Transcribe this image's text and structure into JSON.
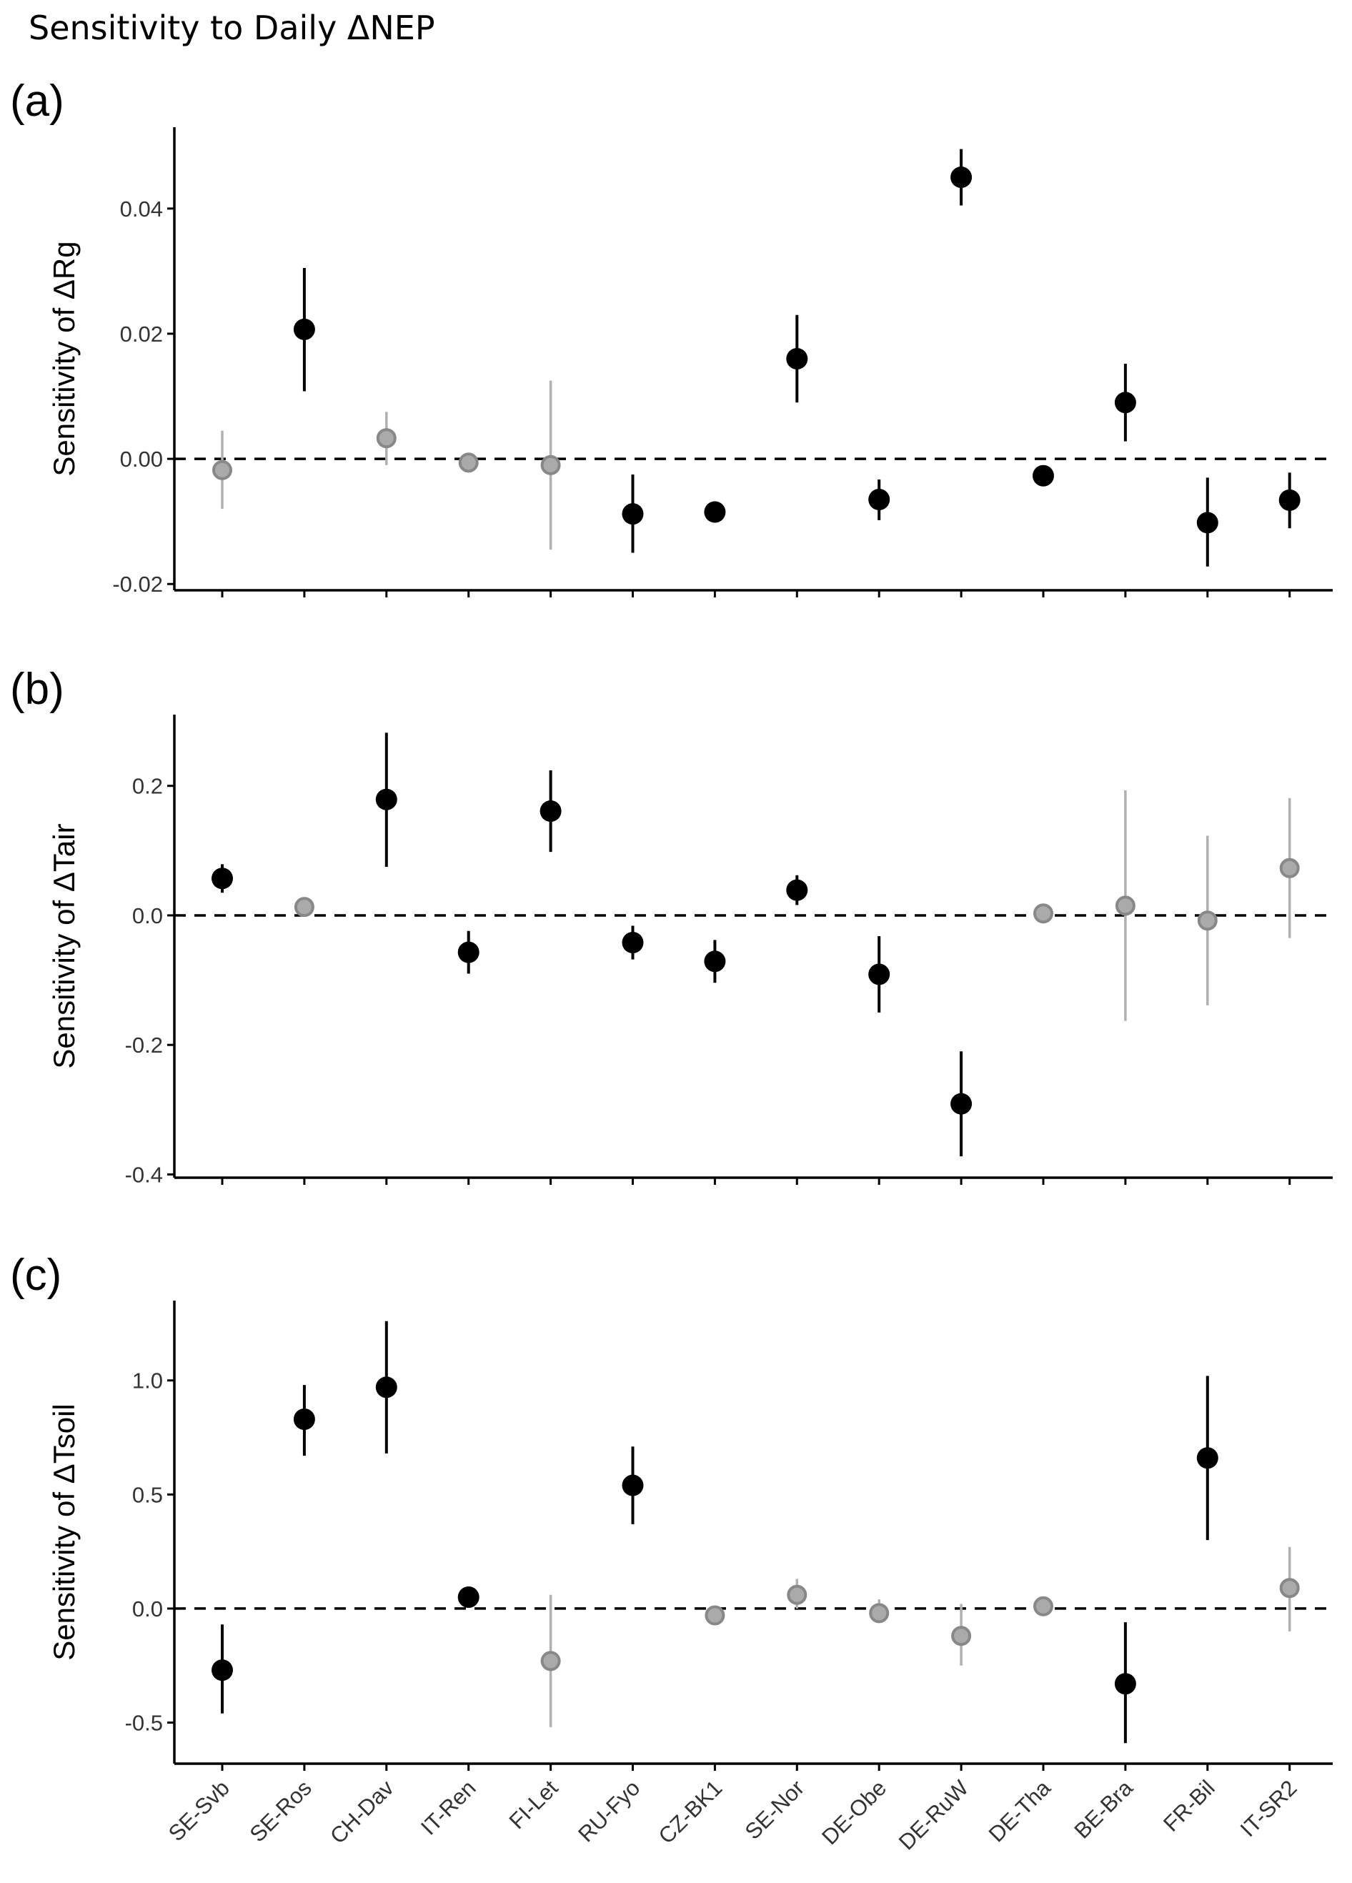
{
  "figure": {
    "title": "Sensitivity to Daily ΔNEP",
    "colors": {
      "significant": "#000000",
      "nonsignificant_fill": "#aaaaaa",
      "nonsignificant_stroke": "#888888",
      "nonsignificant_bar": "#b0b0b0",
      "axis": "#000000",
      "zero_line": "#000000"
    }
  },
  "chart_data": [
    {
      "type": "scatter",
      "panel_label": "(a)",
      "title": "",
      "xlabel": "",
      "ylabel": "Sensitivity of ΔRg",
      "ylim": [
        -0.021,
        0.053
      ],
      "yticks": [
        -0.02,
        0.0,
        0.02,
        0.04
      ],
      "ytick_labels": [
        "-0.02",
        "0.00",
        "0.02",
        "0.04"
      ],
      "categories": [
        "SE-Svb",
        "SE-Ros",
        "CH-Dav",
        "IT-Ren",
        "FI-Let",
        "RU-Fyo",
        "CZ-BK1",
        "SE-Nor",
        "DE-Obe",
        "DE-RuW",
        "DE-Tha",
        "BE-Bra",
        "FR-Bil",
        "IT-SR2"
      ],
      "values": [
        -0.0018,
        0.0207,
        0.0033,
        -0.0006,
        -0.001,
        -0.0088,
        -0.0085,
        0.016,
        -0.0065,
        0.045,
        -0.0027,
        0.009,
        -0.0102,
        -0.0066
      ],
      "lower": [
        -0.008,
        0.0108,
        -0.001,
        -0.001,
        -0.0145,
        -0.015,
        -0.009,
        0.009,
        -0.0098,
        0.0405,
        -0.003,
        0.0028,
        -0.0172,
        -0.0111
      ],
      "upper": [
        0.0045,
        0.0305,
        0.0075,
        -0.0002,
        0.0125,
        -0.0025,
        -0.0078,
        0.023,
        -0.0033,
        0.0495,
        -0.0024,
        0.0152,
        -0.003,
        -0.0022
      ],
      "significant": [
        false,
        true,
        false,
        false,
        false,
        true,
        true,
        true,
        true,
        true,
        true,
        true,
        true,
        true
      ],
      "reference_line": 0
    },
    {
      "type": "scatter",
      "panel_label": "(b)",
      "title": "",
      "xlabel": "",
      "ylabel": "Sensitivity of ΔTair",
      "ylim": [
        -0.405,
        0.31
      ],
      "yticks": [
        -0.4,
        -0.2,
        0.0,
        0.2
      ],
      "ytick_labels": [
        "-0.4",
        "-0.2",
        "0.0",
        "0.2"
      ],
      "categories": [
        "SE-Svb",
        "SE-Ros",
        "CH-Dav",
        "IT-Ren",
        "FI-Let",
        "RU-Fyo",
        "CZ-BK1",
        "SE-Nor",
        "DE-Obe",
        "DE-RuW",
        "DE-Tha",
        "BE-Bra",
        "FR-Bil",
        "IT-SR2"
      ],
      "values": [
        0.057,
        0.013,
        0.179,
        -0.057,
        0.161,
        -0.042,
        -0.071,
        0.039,
        -0.091,
        -0.291,
        0.003,
        0.015,
        -0.008,
        0.073
      ],
      "lower": [
        0.035,
        0.005,
        0.075,
        -0.09,
        0.098,
        -0.068,
        -0.104,
        0.016,
        -0.15,
        -0.372,
        -0.005,
        -0.163,
        -0.139,
        -0.035
      ],
      "upper": [
        0.079,
        0.021,
        0.282,
        -0.024,
        0.224,
        -0.016,
        -0.038,
        0.062,
        -0.032,
        -0.21,
        0.011,
        0.193,
        0.123,
        0.181
      ],
      "significant": [
        true,
        false,
        true,
        true,
        true,
        true,
        true,
        true,
        true,
        true,
        false,
        false,
        false,
        false
      ],
      "reference_line": 0
    },
    {
      "type": "scatter",
      "panel_label": "(c)",
      "title": "",
      "xlabel": "",
      "ylabel": "Sensitivity of ΔTsoil",
      "ylim": [
        -0.68,
        1.35
      ],
      "yticks": [
        -0.5,
        0.0,
        0.5,
        1.0
      ],
      "ytick_labels": [
        "-0.5",
        "0.0",
        "0.5",
        "1.0"
      ],
      "categories": [
        "SE-Svb",
        "SE-Ros",
        "CH-Dav",
        "IT-Ren",
        "FI-Let",
        "RU-Fyo",
        "CZ-BK1",
        "SE-Nor",
        "DE-Obe",
        "DE-RuW",
        "DE-Tha",
        "BE-Bra",
        "FR-Bil",
        "IT-SR2"
      ],
      "values": [
        -0.27,
        0.83,
        0.97,
        0.05,
        -0.23,
        0.54,
        -0.03,
        0.06,
        -0.02,
        -0.12,
        0.01,
        -0.33,
        0.66,
        0.09
      ],
      "lower": [
        -0.46,
        0.67,
        0.68,
        0.03,
        -0.52,
        0.37,
        -0.06,
        0.0,
        -0.05,
        -0.25,
        -0.01,
        -0.59,
        0.3,
        -0.1
      ],
      "upper": [
        -0.07,
        0.98,
        1.26,
        0.07,
        0.06,
        0.71,
        0.0,
        0.13,
        0.04,
        0.02,
        0.04,
        -0.06,
        1.02,
        0.27
      ],
      "significant": [
        true,
        true,
        true,
        true,
        false,
        true,
        false,
        false,
        false,
        false,
        false,
        true,
        true,
        false
      ],
      "reference_line": 0
    }
  ]
}
